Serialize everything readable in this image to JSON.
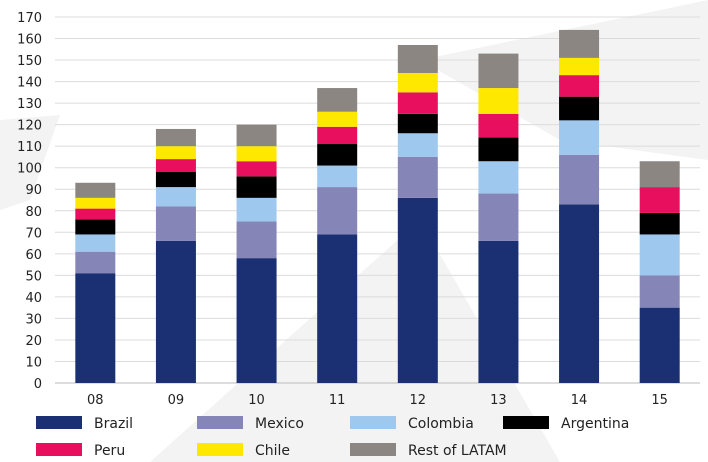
{
  "chart_data": {
    "type": "bar",
    "stacked": true,
    "title": "",
    "xlabel": "",
    "ylabel": "",
    "ylim": [
      0,
      170
    ],
    "ytick_step": 10,
    "grid": "horizontal",
    "legend_position": "bottom",
    "categories": [
      "08",
      "09",
      "10",
      "11",
      "12",
      "13",
      "14",
      "15"
    ],
    "series": [
      {
        "name": "Brazil",
        "color": "#1b2f73",
        "values": [
          51,
          66,
          58,
          69,
          86,
          66,
          83,
          35
        ]
      },
      {
        "name": "Mexico",
        "color": "#8585b8",
        "values": [
          10,
          16,
          17,
          22,
          19,
          22,
          23,
          15
        ]
      },
      {
        "name": "Colombia",
        "color": "#9ec8ee",
        "values": [
          8,
          9,
          11,
          10,
          11,
          15,
          16,
          19
        ]
      },
      {
        "name": "Argentina",
        "color": "#000000",
        "values": [
          7,
          7,
          10,
          10,
          9,
          11,
          11,
          10
        ]
      },
      {
        "name": "Peru",
        "color": "#e8105e",
        "values": [
          5,
          6,
          7,
          8,
          10,
          11,
          10,
          12
        ]
      },
      {
        "name": "Chile",
        "color": "#ffe800",
        "values": [
          5,
          6,
          7,
          7,
          9,
          12,
          8,
          0
        ]
      },
      {
        "name": "Rest of LATAM",
        "color": "#8c8682",
        "values": [
          7,
          8,
          10,
          11,
          13,
          16,
          13,
          12
        ]
      }
    ]
  }
}
